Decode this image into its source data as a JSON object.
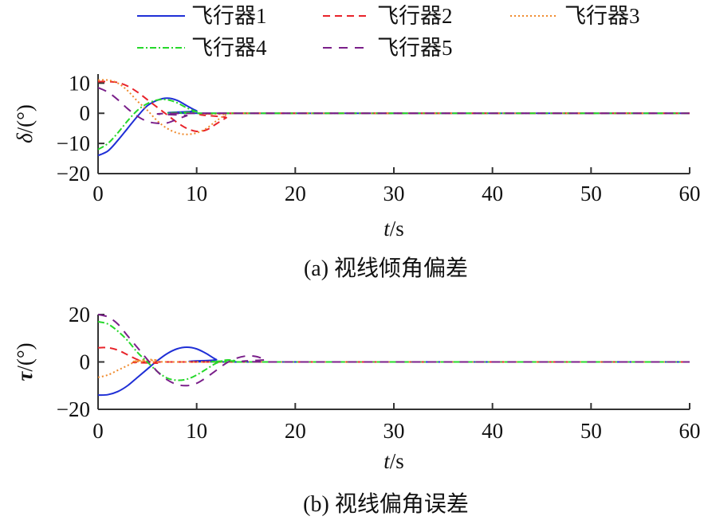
{
  "legend": [
    {
      "label": "飞行器1",
      "color": "#1f2fd6",
      "dash": "solid"
    },
    {
      "label": "飞行器2",
      "color": "#e8232a",
      "dash": "dashed"
    },
    {
      "label": "飞行器3",
      "color": "#f08a2c",
      "dash": "dotted"
    },
    {
      "label": "飞行器4",
      "color": "#25d82a",
      "dash": "dashdot"
    },
    {
      "label": "飞行器5",
      "color": "#7a1f8a",
      "dash": "longdash"
    }
  ],
  "chart_data": [
    {
      "type": "line",
      "ylabel_symbol": "δ",
      "ylabel_unit": "/(°)",
      "xlabel_symbol": "t",
      "xlabel_unit": "/s",
      "caption": "(a) 视线倾角偏差",
      "xlim": [
        0,
        60
      ],
      "ylim": [
        -20,
        13
      ],
      "xticks": [
        0,
        10,
        20,
        30,
        40,
        50,
        60
      ],
      "yticks": [
        -20,
        -10,
        0,
        10
      ],
      "ytick_labels": [
        "−20",
        "−10",
        "0",
        "10"
      ],
      "series": [
        {
          "name": "飞行器1",
          "points": [
            [
              0,
              -14
            ],
            [
              1,
              -12.5
            ],
            [
              2,
              -9
            ],
            [
              3,
              -5
            ],
            [
              4,
              -1
            ],
            [
              5,
              2.5
            ],
            [
              6,
              4.3
            ],
            [
              7,
              5
            ],
            [
              8,
              4.3
            ],
            [
              9,
              2.5
            ],
            [
              10,
              0.8
            ],
            [
              11,
              0
            ],
            [
              60,
              0
            ]
          ]
        },
        {
          "name": "飞行器2",
          "points": [
            [
              0,
              10.5
            ],
            [
              1,
              10.5
            ],
            [
              2,
              10.2
            ],
            [
              3,
              9
            ],
            [
              4,
              7
            ],
            [
              5,
              4.5
            ],
            [
              6,
              2
            ],
            [
              7,
              -0.5
            ],
            [
              8,
              -3
            ],
            [
              9,
              -5
            ],
            [
              10,
              -6
            ],
            [
              11,
              -5.5
            ],
            [
              12,
              -3.5
            ],
            [
              13,
              -1.5
            ],
            [
              14,
              0
            ],
            [
              60,
              0
            ]
          ]
        },
        {
          "name": "飞行器3",
          "points": [
            [
              0,
              11
            ],
            [
              1,
              11
            ],
            [
              2,
              10
            ],
            [
              3,
              7.5
            ],
            [
              4,
              4
            ],
            [
              5,
              1
            ],
            [
              6,
              -2.5
            ],
            [
              7,
              -5
            ],
            [
              8,
              -6.5
            ],
            [
              9,
              -7
            ],
            [
              10,
              -6.5
            ],
            [
              11,
              -5
            ],
            [
              12,
              -2.5
            ],
            [
              13,
              -0.5
            ],
            [
              14,
              0
            ],
            [
              60,
              0
            ]
          ]
        },
        {
          "name": "飞行器4",
          "points": [
            [
              0,
              -12
            ],
            [
              1,
              -10
            ],
            [
              2,
              -6.5
            ],
            [
              3,
              -2.5
            ],
            [
              4,
              1
            ],
            [
              5,
              3.2
            ],
            [
              6,
              4.4
            ],
            [
              7,
              4.5
            ],
            [
              8,
              3.5
            ],
            [
              9,
              1.8
            ],
            [
              10,
              0.5
            ],
            [
              11,
              0
            ],
            [
              60,
              0
            ]
          ]
        },
        {
          "name": "飞行器5",
          "points": [
            [
              0,
              8.5
            ],
            [
              1,
              7
            ],
            [
              2,
              4.5
            ],
            [
              3,
              1.5
            ],
            [
              4,
              -1
            ],
            [
              5,
              -2.7
            ],
            [
              6,
              -3.3
            ],
            [
              7,
              -3.2
            ],
            [
              8,
              -2
            ],
            [
              9,
              -0.8
            ],
            [
              10,
              0
            ],
            [
              60,
              0
            ]
          ]
        }
      ]
    },
    {
      "type": "line",
      "ylabel_symbol": "τ",
      "ylabel_unit": "/(°)",
      "xlabel_symbol": "t",
      "xlabel_unit": "/s",
      "caption": "(b) 视线偏角误差",
      "xlim": [
        0,
        60
      ],
      "ylim": [
        -20,
        20
      ],
      "xticks": [
        0,
        10,
        20,
        30,
        40,
        50,
        60
      ],
      "yticks": [
        -20,
        0,
        20
      ],
      "ytick_labels": [
        "−20",
        "0",
        "20"
      ],
      "series": [
        {
          "name": "飞行器1",
          "points": [
            [
              0,
              -14
            ],
            [
              1,
              -13.8
            ],
            [
              2,
              -12.5
            ],
            [
              3,
              -10
            ],
            [
              4,
              -6.5
            ],
            [
              5,
              -3
            ],
            [
              6,
              0.5
            ],
            [
              7,
              3.5
            ],
            [
              8,
              5.5
            ],
            [
              9,
              6.2
            ],
            [
              10,
              5.5
            ],
            [
              11,
              3.5
            ],
            [
              12,
              1
            ],
            [
              13,
              0
            ],
            [
              60,
              0
            ]
          ]
        },
        {
          "name": "飞行器2",
          "points": [
            [
              0,
              6
            ],
            [
              1,
              6
            ],
            [
              2,
              5
            ],
            [
              3,
              3
            ],
            [
              4,
              1
            ],
            [
              5,
              -0.3
            ],
            [
              6,
              -0.5
            ],
            [
              8,
              0
            ],
            [
              60,
              0
            ]
          ]
        },
        {
          "name": "飞行器3",
          "points": [
            [
              0,
              -6.5
            ],
            [
              1,
              -5.5
            ],
            [
              2,
              -3.5
            ],
            [
              3,
              -1.5
            ],
            [
              4,
              0.5
            ],
            [
              5,
              1
            ],
            [
              6,
              0.8
            ],
            [
              8,
              0
            ],
            [
              60,
              0
            ]
          ]
        },
        {
          "name": "飞行器4",
          "points": [
            [
              0,
              17
            ],
            [
              1,
              16
            ],
            [
              2,
              13
            ],
            [
              3,
              9
            ],
            [
              4,
              4
            ],
            [
              5,
              0
            ],
            [
              6,
              -4
            ],
            [
              7,
              -6.8
            ],
            [
              8,
              -7.7
            ],
            [
              9,
              -7.3
            ],
            [
              10,
              -5.5
            ],
            [
              11,
              -3
            ],
            [
              12,
              -0.5
            ],
            [
              13,
              0.8
            ],
            [
              14,
              0.5
            ],
            [
              15,
              0
            ],
            [
              60,
              0
            ]
          ]
        },
        {
          "name": "飞行器5",
          "points": [
            [
              0,
              20
            ],
            [
              1,
              19
            ],
            [
              2,
              16
            ],
            [
              3,
              11
            ],
            [
              4,
              6
            ],
            [
              5,
              1
            ],
            [
              6,
              -4
            ],
            [
              7,
              -7.5
            ],
            [
              8,
              -9.5
            ],
            [
              9,
              -10
            ],
            [
              10,
              -9
            ],
            [
              11,
              -6.5
            ],
            [
              12,
              -3.5
            ],
            [
              13,
              -0.5
            ],
            [
              14,
              1.5
            ],
            [
              15,
              2.5
            ],
            [
              16,
              2.3
            ],
            [
              17,
              1
            ],
            [
              18,
              0
            ],
            [
              60,
              0
            ]
          ]
        }
      ]
    }
  ]
}
